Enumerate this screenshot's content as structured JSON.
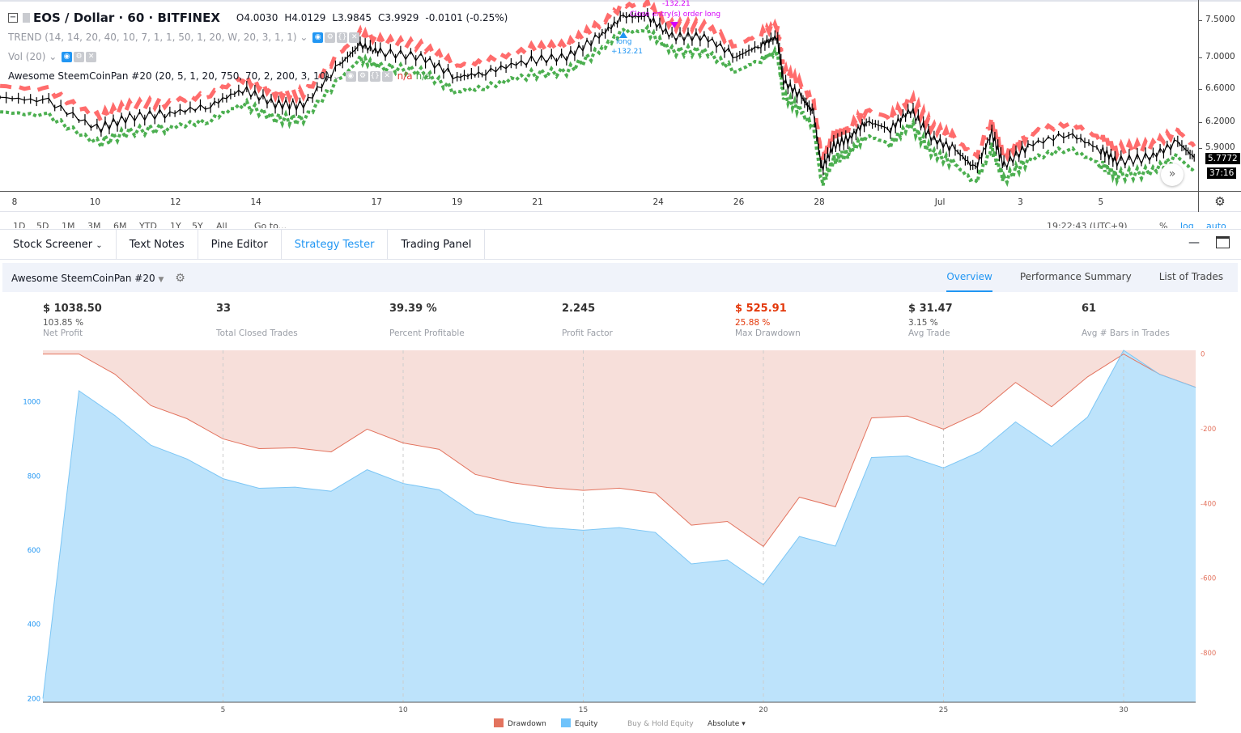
{
  "legend": {
    "symbol": "EOS / Dollar · 60 · BITFINEX",
    "open": "O4.0030",
    "high": "H4.0129",
    "low": "L3.9845",
    "close": "C3.9929",
    "change": "-0.0101 (-0.25%)",
    "indicators": [
      {
        "label": "TREND (14, 14, 20, 40, 10, 7, 1, 1, 50, 1, 20, W, 20, 3, 1, 1)"
      },
      {
        "label": "Vol (20)"
      },
      {
        "label": "Awesome SteemCoinPan #20 (20, 5, 1, 20, 750, 70, 2, 200, 3, 10)",
        "v1": "n/a",
        "v2": "n/a"
      }
    ]
  },
  "price_axis": {
    "ticks": [
      "7.5000",
      "7.0000",
      "6.6000",
      "6.2000",
      "5.9000"
    ],
    "last_price": "5.7772",
    "countdown": "37:16"
  },
  "time_axis": {
    "labels": [
      "8",
      "10",
      "12",
      "14",
      "17",
      "19",
      "21",
      "24",
      "26",
      "28",
      "Jul",
      "3",
      "5"
    ],
    "label_days": [
      0,
      2,
      4,
      6,
      9,
      11,
      13,
      16,
      18,
      20,
      23,
      25,
      27
    ]
  },
  "annotations": {
    "loss": "-132.21",
    "close_label": "Close entry(s) order long",
    "long": "long",
    "gain": "+132.21"
  },
  "price_series": {
    "days": [
      -0.36,
      0.85,
      2.05,
      2.86,
      3.86,
      4.87,
      5.67,
      6.48,
      7.18,
      8.09,
      8.59,
      9.09,
      10.1,
      11.0,
      11.71,
      12.72,
      13.72,
      14.53,
      15.13,
      15.73,
      16.34,
      17.14,
      17.95,
      18.55,
      18.95,
      19.11,
      19.56,
      19.86,
      20.06,
      20.36,
      20.76,
      21.17,
      21.77,
      22.27,
      22.78,
      23.38,
      23.88,
      24.29,
      24.59,
      25.19,
      26.2,
      27.0,
      27.4,
      28.21,
      28.91,
      29.32
    ],
    "prices": [
      6.5,
      6.45,
      6.12,
      6.26,
      6.31,
      6.4,
      6.6,
      6.42,
      6.4,
      6.91,
      7.17,
      7.07,
      7.01,
      6.75,
      6.81,
      6.96,
      7.01,
      7.28,
      7.55,
      7.55,
      7.28,
      7.28,
      7.01,
      7.17,
      7.28,
      6.7,
      6.5,
      6.31,
      5.66,
      5.93,
      6.02,
      6.21,
      6.12,
      6.35,
      6.02,
      5.88,
      5.66,
      6.07,
      5.7,
      5.93,
      6.07,
      5.88,
      5.75,
      5.79,
      5.97,
      5.79
    ]
  },
  "range_bar": {
    "items": [
      "1D",
      "5D",
      "1M",
      "3M",
      "6M",
      "YTD",
      "1Y",
      "5Y",
      "All"
    ],
    "goto": "Go to...",
    "time": "19:22:43 (UTC+9)",
    "pct": "%",
    "log": "log",
    "auto": "auto"
  },
  "tabs": [
    "Stock Screener",
    "Text Notes",
    "Pine Editor",
    "Strategy Tester",
    "Trading Panel"
  ],
  "strategy": {
    "name": "Awesome SteemCoinPan #20",
    "tabs": [
      "Overview",
      "Performance Summary",
      "List of Trades"
    ]
  },
  "stats": [
    {
      "value": "$ 1038.50",
      "sub": "103.85 %",
      "label": "Net Profit"
    },
    {
      "value": "33",
      "sub": "",
      "label": "Total Closed Trades"
    },
    {
      "value": "39.39 %",
      "sub": "",
      "label": "Percent Profitable"
    },
    {
      "value": "2.245",
      "sub": "",
      "label": "Profit Factor"
    },
    {
      "value": "$ 525.91",
      "sub": "25.88 %",
      "label": "Max Drawdown"
    },
    {
      "value": "$ 31.47",
      "sub": "3.15 %",
      "label": "Avg Trade"
    },
    {
      "value": "61",
      "sub": "",
      "label": "Avg # Bars in Trades"
    }
  ],
  "chart_data": {
    "type": "area",
    "title": "",
    "x": [
      0,
      1,
      2,
      3,
      4,
      5,
      6,
      7,
      8,
      9,
      10,
      11,
      12,
      13,
      14,
      15,
      16,
      17,
      18,
      19,
      20,
      21,
      22,
      23,
      24,
      25,
      26,
      27,
      28,
      29,
      30,
      31,
      32
    ],
    "xticks": [
      "5",
      "10",
      "15",
      "20",
      "25",
      "30"
    ],
    "xtick_values": [
      5,
      10,
      15,
      20,
      25,
      30
    ],
    "series": [
      {
        "name": "Equity",
        "axis": "left",
        "color": "#bde3fb",
        "line": "#7cc6f5",
        "values": [
          200,
          1030,
          963,
          883,
          846,
          793,
          767,
          770,
          759,
          817,
          780,
          763,
          698,
          676,
          661,
          654,
          661,
          648,
          563,
          574,
          507,
          637,
          611,
          850,
          854,
          822,
          865,
          946,
          880,
          959,
          1139,
          1074,
          1039
        ]
      },
      {
        "name": "Drawdown",
        "axis": "right",
        "color": "#f7dfda",
        "line": "#e3735e",
        "values": [
          0,
          0,
          -54,
          -138,
          -173,
          -227,
          -253,
          -251,
          -262,
          -201,
          -238,
          -255,
          -322,
          -344,
          -357,
          -365,
          -359,
          -372,
          -458,
          -448,
          -515,
          -383,
          -409,
          -171,
          -166,
          -201,
          -156,
          -76,
          -141,
          -61,
          0,
          -54,
          -89
        ]
      }
    ],
    "left_axis": {
      "ticks": [
        "1000",
        "800",
        "600",
        "400",
        "200"
      ],
      "tick_values": [
        1000,
        800,
        600,
        400,
        200
      ],
      "range": [
        190,
        1139
      ]
    },
    "right_axis": {
      "ticks": [
        "0",
        "-200",
        "-400",
        "-600",
        "-800"
      ],
      "tick_values": [
        0,
        -200,
        -400,
        -600,
        -800
      ],
      "range": [
        -932,
        10
      ]
    },
    "legend": [
      "Drawdown",
      "Equity",
      "Buy & Hold Equity",
      "Absolute"
    ],
    "legend_placement": "bottom-center",
    "grid": "vertical-dashed"
  }
}
